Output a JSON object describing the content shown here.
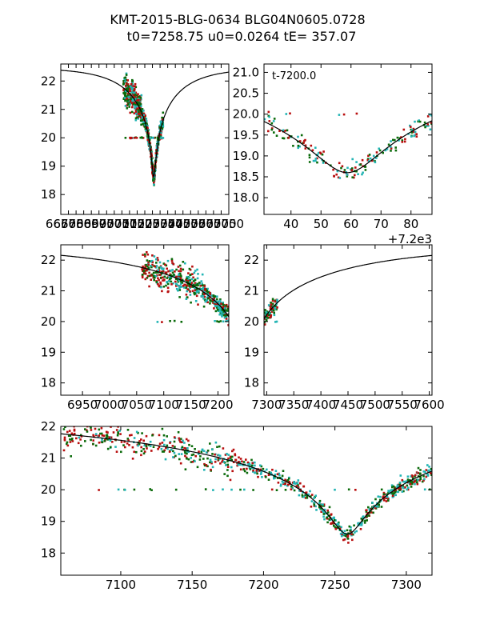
{
  "figure": {
    "title_line1": "KMT-2015-BLG-0634 BLG04N0605.0728",
    "title_line2": "t0=7258.75 u0=0.0264 tE= 357.07"
  },
  "colors": {
    "green": "#0a6a0a",
    "red": "#b80e0e",
    "cyan": "#22b4b4",
    "model": "#000000"
  },
  "model": {
    "t0": 7258.75,
    "u0": 0.0264,
    "tE": 357.07,
    "m_base": 22.47,
    "m_peak": 18.6
  },
  "chart_data": [
    {
      "type": "scatter",
      "id": "panel-top-left",
      "xlim": [
        6650,
        7750
      ],
      "ylim": [
        22.6,
        17.3
      ],
      "xticks": [
        6650,
        6700,
        6750,
        6800,
        6850,
        6900,
        6950,
        7000,
        7050,
        7100,
        7150,
        7200,
        7250,
        7300,
        7350,
        7400,
        7450,
        7500,
        7550,
        7600,
        7650,
        7700,
        7750
      ],
      "xtick_labels": [
        "6650",
        "6700",
        "6750",
        "6800",
        "6850",
        "6900",
        "6950",
        "7000",
        "7050",
        "7100",
        "7150",
        "7200",
        "7250",
        "7300",
        "7350",
        "7400",
        "7450",
        "7500",
        "7550",
        "7600",
        "7650",
        "7700",
        "7750"
      ],
      "yticks": [
        18,
        19,
        20,
        21,
        22
      ],
      "ytick_labels": [
        "18",
        "19",
        "20",
        "21",
        "22"
      ],
      "data_window": [
        7060,
        7320
      ],
      "series": [
        {
          "color": "green"
        },
        {
          "color": "red"
        },
        {
          "color": "cyan"
        }
      ]
    },
    {
      "type": "scatter",
      "id": "panel-top-right",
      "xlim": [
        31,
        87
      ],
      "ylim": [
        21.2,
        17.6
      ],
      "xticks": [
        40,
        50,
        60,
        70,
        80
      ],
      "xtick_labels": [
        "40",
        "50",
        "60",
        "70",
        "80"
      ],
      "yticks": [
        18.0,
        18.5,
        19.0,
        19.5,
        20.0,
        20.5,
        21.0
      ],
      "ytick_labels": [
        "18.0",
        "18.5",
        "19.0",
        "19.5",
        "20.0",
        "20.5",
        "21.0"
      ],
      "inset_label": "t-7200.0",
      "offset_label": "+7.2e3",
      "data_window": [
        31,
        87
      ],
      "series": [
        {
          "color": "green"
        },
        {
          "color": "red"
        },
        {
          "color": "cyan"
        }
      ]
    },
    {
      "type": "scatter",
      "id": "panel-mid-left",
      "xlim": [
        6910,
        7220
      ],
      "ylim": [
        22.5,
        17.6
      ],
      "xticks": [
        6950,
        7000,
        7050,
        7100,
        7150,
        7200
      ],
      "xtick_labels": [
        "6950",
        "7000",
        "7050",
        "7100",
        "7150",
        "7200"
      ],
      "yticks": [
        18,
        19,
        20,
        21,
        22
      ],
      "ytick_labels": [
        "18",
        "19",
        "20",
        "21",
        "22"
      ],
      "data_window": [
        7060,
        7220
      ],
      "series": [
        {
          "color": "green"
        },
        {
          "color": "red"
        },
        {
          "color": "cyan"
        }
      ]
    },
    {
      "type": "scatter",
      "id": "panel-mid-right",
      "xlim": [
        7295,
        7605
      ],
      "ylim": [
        22.5,
        17.6
      ],
      "xticks": [
        7300,
        7350,
        7400,
        7450,
        7500,
        7550,
        7600
      ],
      "xtick_labels": [
        "7300",
        "7350",
        "7400",
        "7450",
        "7500",
        "7550",
        "7600"
      ],
      "yticks": [
        18,
        19,
        20,
        21,
        22
      ],
      "ytick_labels": [
        "18",
        "19",
        "20",
        "21",
        "22"
      ],
      "data_window": [
        7295,
        7320
      ],
      "series": [
        {
          "color": "green"
        },
        {
          "color": "red"
        },
        {
          "color": "cyan"
        }
      ]
    },
    {
      "type": "scatter",
      "id": "panel-bottom",
      "xlim": [
        7058,
        7318
      ],
      "ylim": [
        22.0,
        17.3
      ],
      "xticks": [
        7100,
        7150,
        7200,
        7250,
        7300
      ],
      "xtick_labels": [
        "7100",
        "7150",
        "7200",
        "7250",
        "7300"
      ],
      "yticks": [
        18,
        19,
        20,
        21,
        22
      ],
      "ytick_labels": [
        "18",
        "19",
        "20",
        "21",
        "22"
      ],
      "data_window": [
        7060,
        7318
      ],
      "series": [
        {
          "color": "green"
        },
        {
          "color": "red"
        },
        {
          "color": "cyan"
        }
      ]
    }
  ]
}
